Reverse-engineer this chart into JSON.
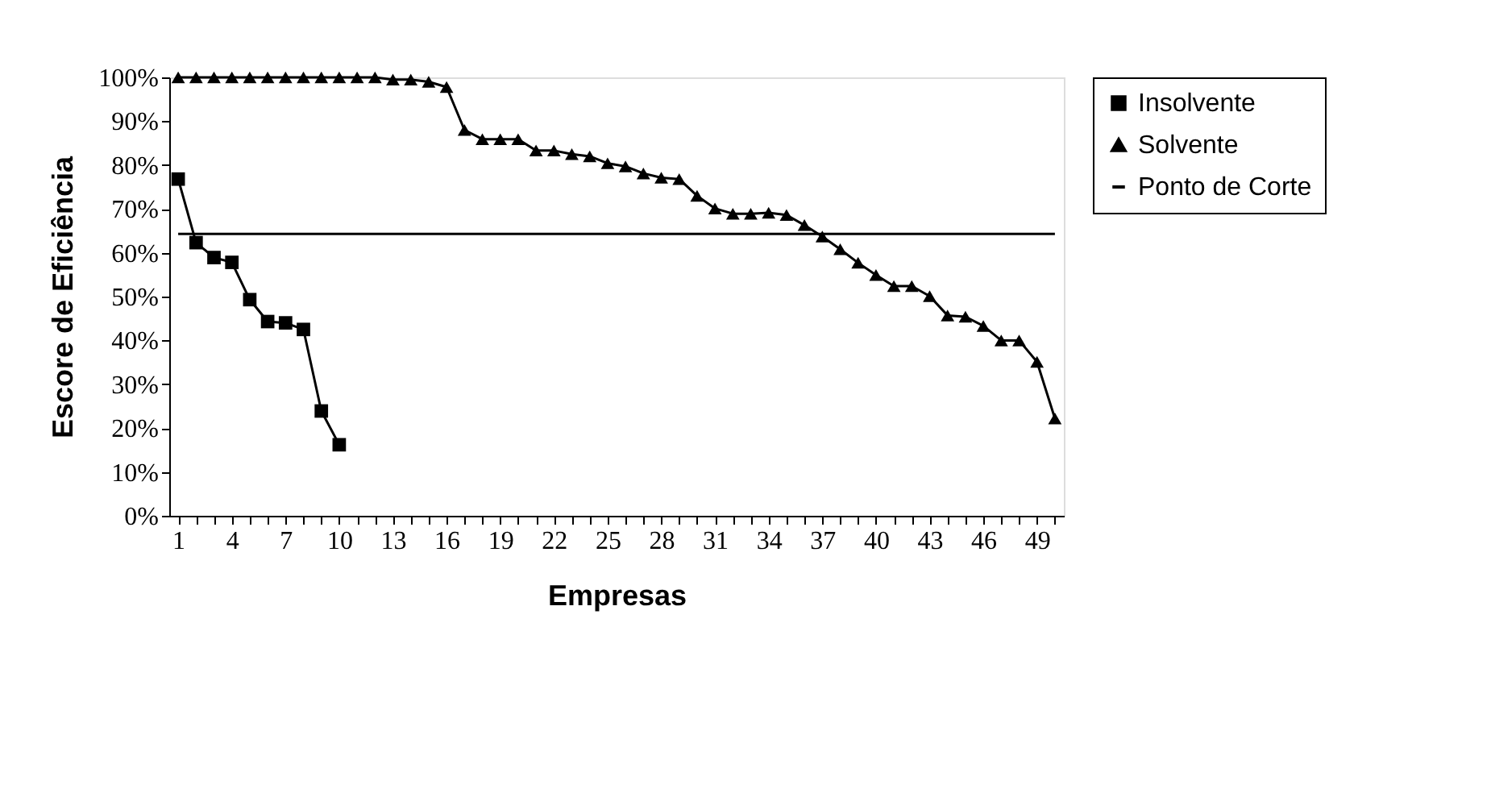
{
  "chart_data": {
    "type": "line",
    "xlabel": "Empresas",
    "ylabel": "Escore de Eficiência",
    "categories": [
      "1",
      null,
      null,
      "4",
      null,
      null,
      "7",
      null,
      null,
      "10",
      null,
      null,
      "13",
      null,
      null,
      "16",
      null,
      null,
      "19",
      null,
      null,
      "22",
      null,
      null,
      "25",
      null,
      null,
      "28",
      null,
      null,
      "31",
      null,
      null,
      "34",
      null,
      null,
      "37",
      null,
      null,
      "40",
      null,
      null,
      "43",
      null,
      null,
      "46",
      null,
      null,
      "49",
      null
    ],
    "series": [
      {
        "name": "Insolvente",
        "color": "#000000",
        "marker": "square",
        "values": [
          76.8,
          62.3,
          58.9,
          57.8,
          49.3,
          44.3,
          44.0,
          42.5,
          23.9,
          16.2,
          null,
          null,
          null,
          null,
          null,
          null,
          null,
          null,
          null,
          null,
          null,
          null,
          null,
          null,
          null,
          null,
          null,
          null,
          null,
          null,
          null,
          null,
          null,
          null,
          null,
          null,
          null,
          null,
          null,
          null,
          null,
          null,
          null,
          null,
          null,
          null,
          null,
          null,
          null,
          null
        ]
      },
      {
        "name": "Solvente",
        "color": "#000000",
        "marker": "triangle",
        "values": [
          100,
          100,
          100,
          100,
          100,
          100,
          100,
          100,
          100,
          100,
          100,
          100,
          99.5,
          99.5,
          99,
          97.8,
          88,
          85.9,
          85.9,
          85.9,
          83.3,
          83.3,
          82.5,
          82.0,
          80.4,
          79.7,
          78.1,
          77.1,
          76.8,
          73.0,
          70.1,
          68.9,
          68.9,
          69.1,
          68.6,
          66.3,
          63.7,
          60.8,
          57.7,
          54.9,
          52.4,
          52.4,
          50.1,
          45.7,
          45.4,
          43.3,
          40.0,
          40.0,
          35.1,
          22.2
        ]
      },
      {
        "name": "Ponto de Corte",
        "color": "#000000",
        "marker": "none",
        "values": [
          64.3,
          64.3,
          64.3,
          64.3,
          64.3,
          64.3,
          64.3,
          64.3,
          64.3,
          64.3,
          64.3,
          64.3,
          64.3,
          64.3,
          64.3,
          64.3,
          64.3,
          64.3,
          64.3,
          64.3,
          64.3,
          64.3,
          64.3,
          64.3,
          64.3,
          64.3,
          64.3,
          64.3,
          64.3,
          64.3,
          64.3,
          64.3,
          64.3,
          64.3,
          64.3,
          64.3,
          64.3,
          64.3,
          64.3,
          64.3,
          64.3,
          64.3,
          64.3,
          64.3,
          64.3,
          64.3,
          64.3,
          64.3,
          64.3,
          64.3
        ]
      }
    ],
    "ylim": [
      0,
      100
    ],
    "yticks": [
      {
        "value": 0,
        "label": "0%"
      },
      {
        "value": 10,
        "label": "10%"
      },
      {
        "value": 20,
        "label": "20%"
      },
      {
        "value": 30,
        "label": "30%"
      },
      {
        "value": 40,
        "label": "40%"
      },
      {
        "value": 50,
        "label": "50%"
      },
      {
        "value": 60,
        "label": "60%"
      },
      {
        "value": 70,
        "label": "70%"
      },
      {
        "value": 80,
        "label": "80%"
      },
      {
        "value": 90,
        "label": "90%"
      },
      {
        "value": 100,
        "label": "100%"
      }
    ],
    "grid": false,
    "legend": "right",
    "line_style": "solid"
  }
}
